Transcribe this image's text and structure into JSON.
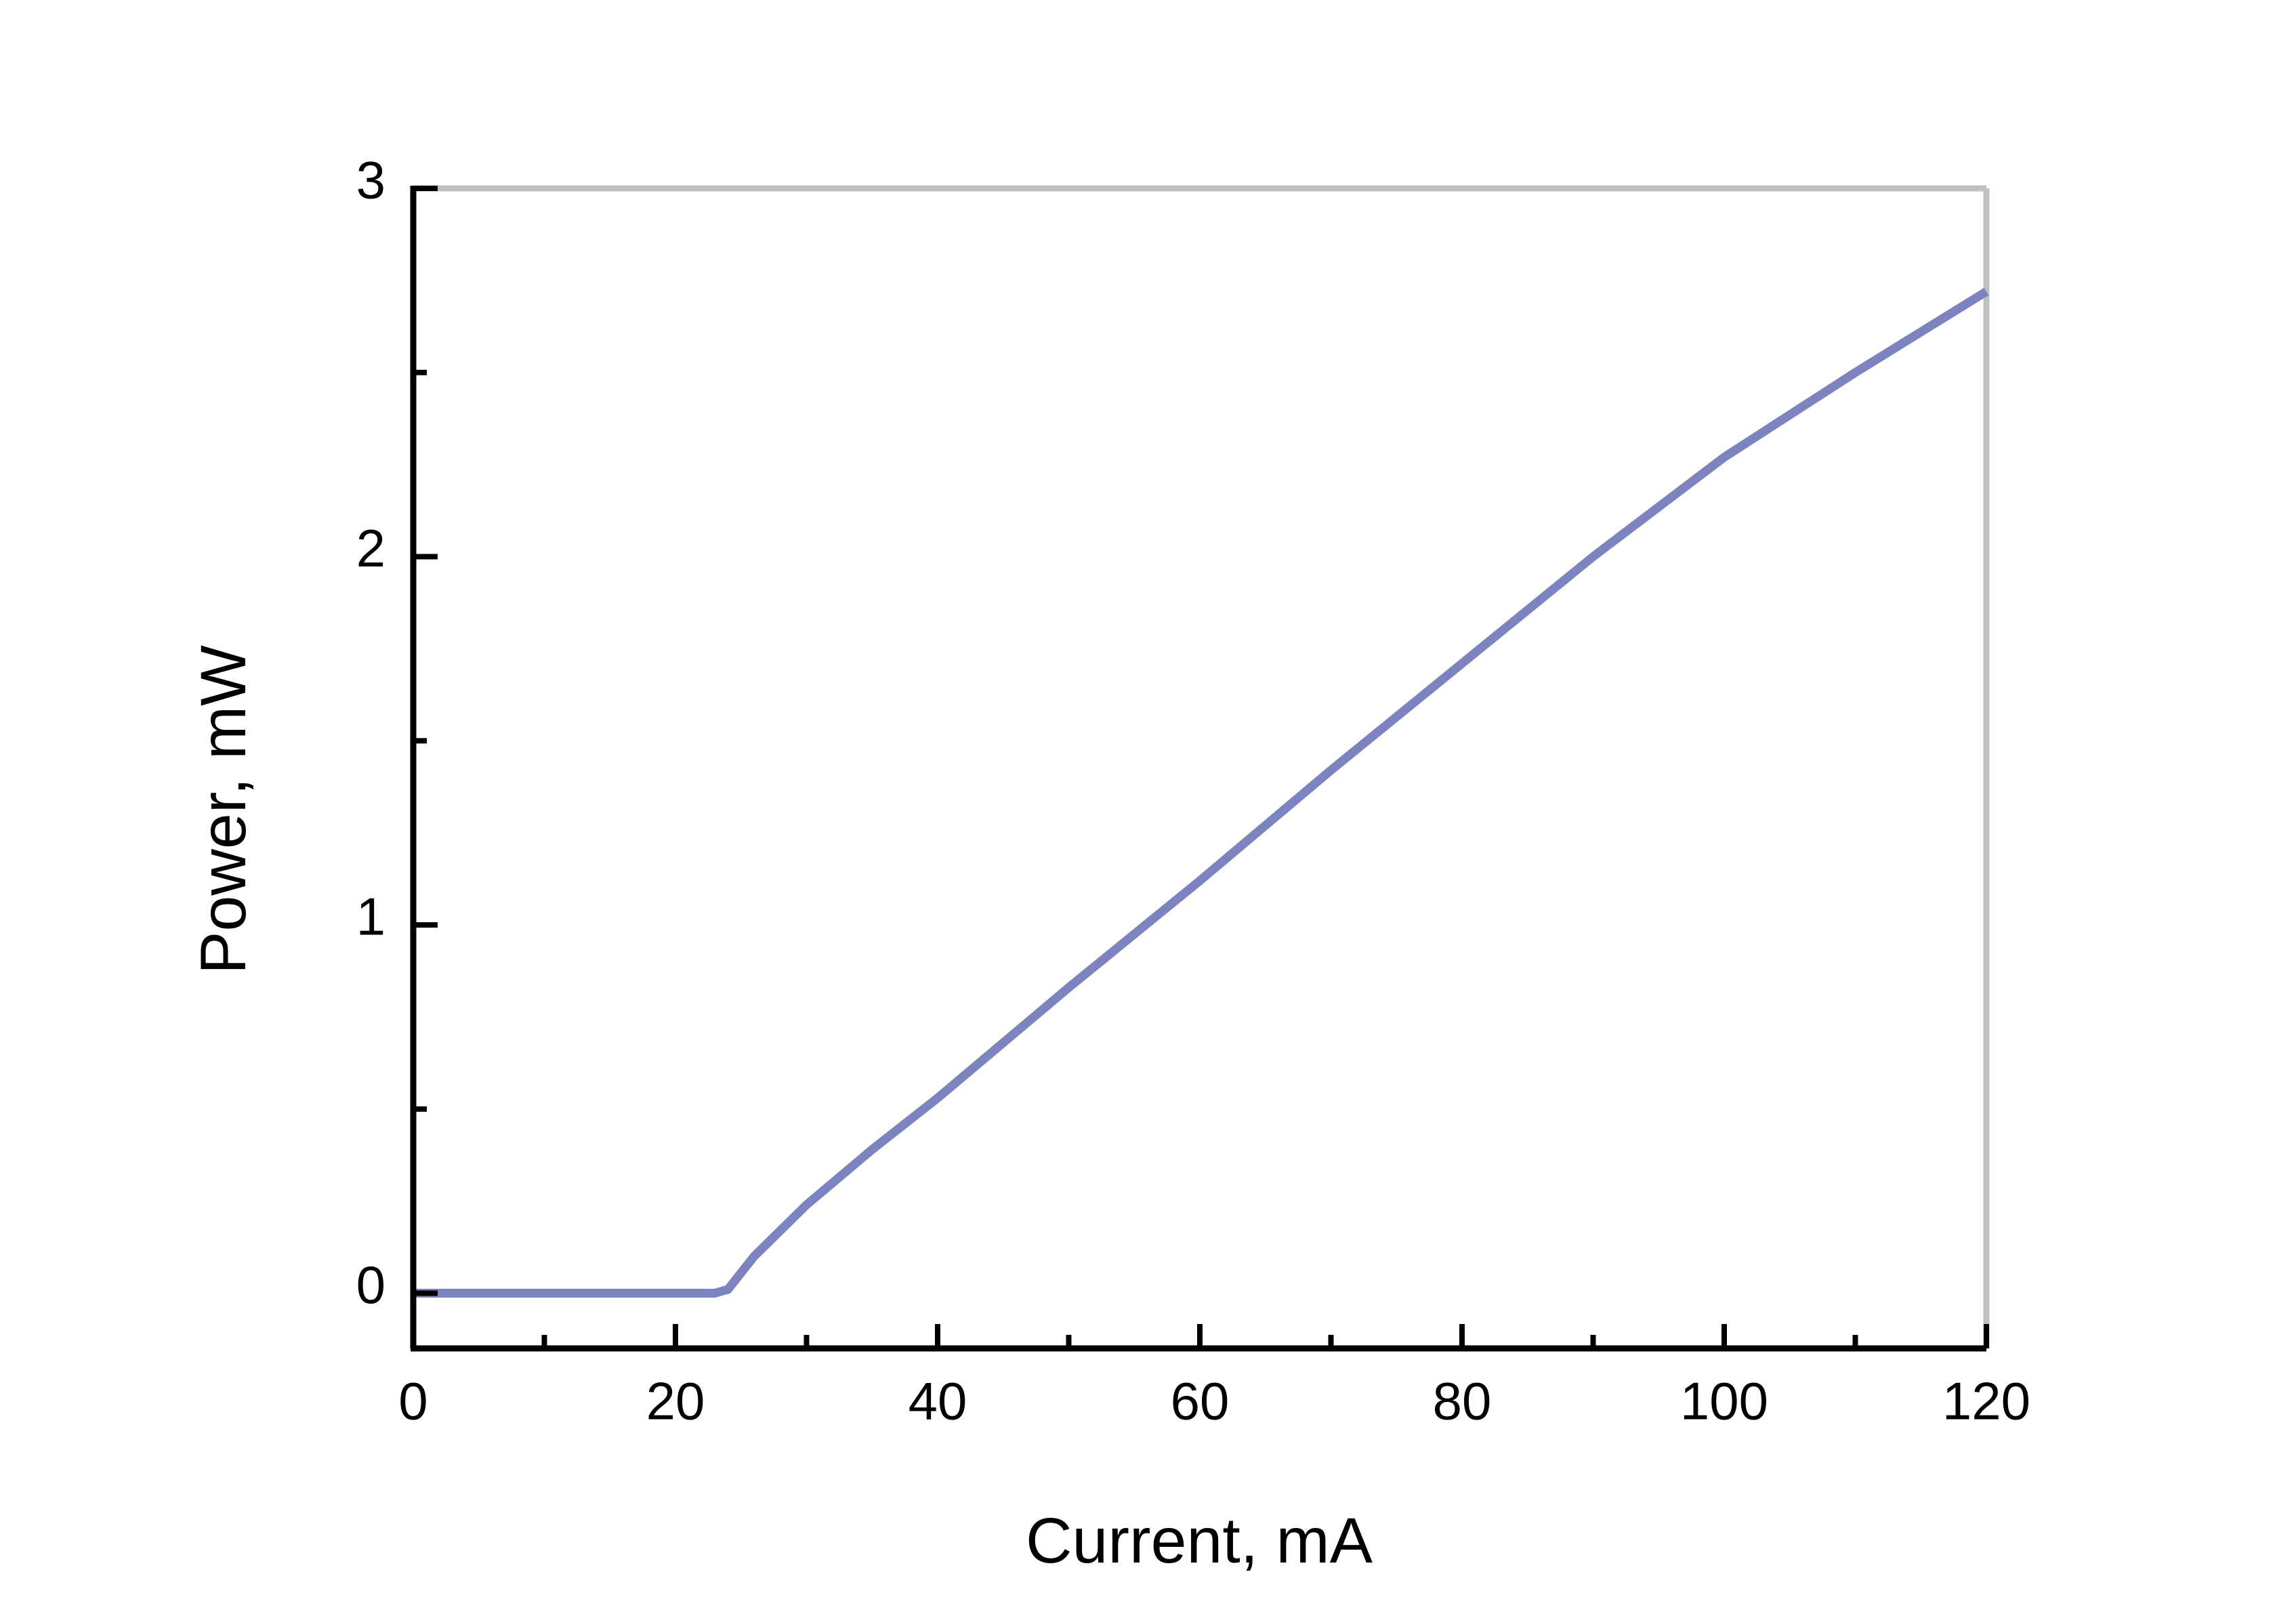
{
  "chart_data": {
    "type": "line",
    "x_label": "Current, mA",
    "y_label": "Power, mW",
    "xlim": [
      0,
      120
    ],
    "xticks": [
      0,
      20,
      40,
      60,
      80,
      100,
      120
    ],
    "xminor": [
      10,
      30,
      50,
      70,
      90,
      110
    ],
    "ylim": [
      -0.15,
      3
    ],
    "yticks": [
      0,
      1,
      2,
      3
    ],
    "yminor": [
      0.5,
      1.5,
      2.5
    ],
    "grid": false,
    "series": [
      {
        "color": "#7b84c0",
        "x": [
          0,
          5,
          10,
          15,
          20,
          23,
          24,
          26,
          30,
          35,
          40,
          50,
          60,
          70,
          80,
          90,
          100,
          110,
          120
        ],
        "values": [
          0,
          0,
          0,
          0,
          0,
          0,
          0.01,
          0.1,
          0.24,
          0.39,
          0.53,
          0.83,
          1.12,
          1.42,
          1.71,
          2.0,
          2.27,
          2.5,
          2.72
        ]
      }
    ]
  }
}
